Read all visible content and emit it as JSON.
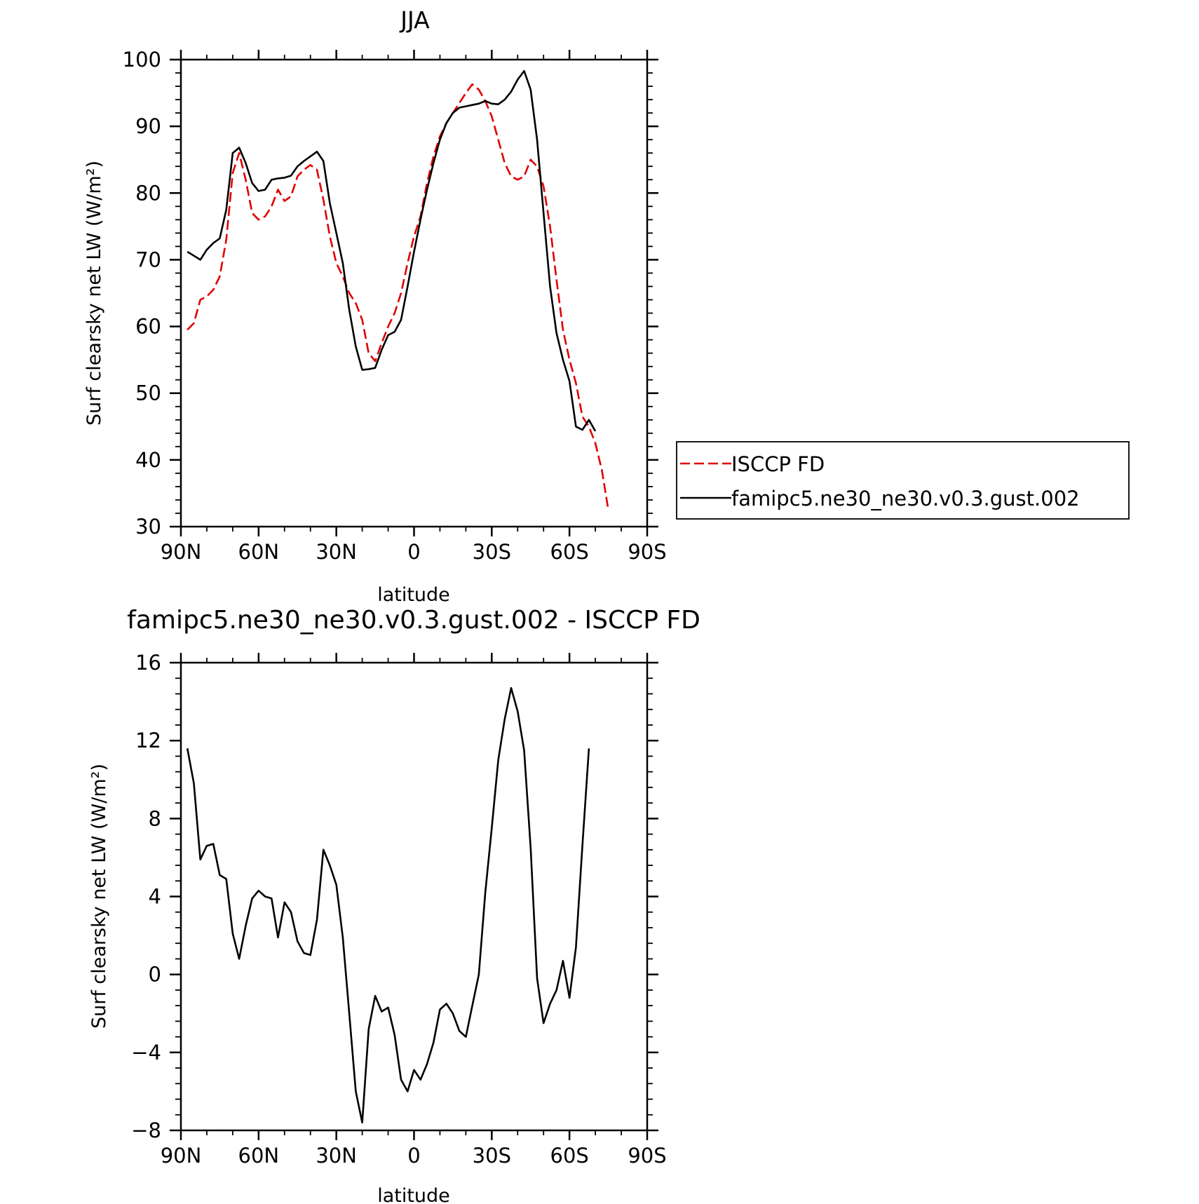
{
  "chart_data": [
    {
      "type": "line",
      "title": "JJA",
      "xlabel": "latitude",
      "ylabel": "Surf clearsky net LW (W/m²)",
      "xlim": [
        90,
        -90
      ],
      "ylim": [
        30,
        100
      ],
      "x_ticks": [
        90,
        60,
        30,
        0,
        -30,
        -60,
        -90
      ],
      "x_tick_labels": [
        "90N",
        "60N",
        "30N",
        "0",
        "30S",
        "60S",
        "90S"
      ],
      "y_ticks": [
        30,
        40,
        50,
        60,
        70,
        80,
        90,
        100
      ],
      "y_tick_labels": [
        "30",
        "40",
        "50",
        "60",
        "70",
        "80",
        "90",
        "100"
      ],
      "legend": {
        "placement": "right",
        "entries": [
          "ISCCP FD",
          "famipc5.ne30_ne30.v0.3.gust.002"
        ]
      },
      "series": [
        {
          "name": "ISCCP FD",
          "color": "#e00000",
          "dash": "dashed",
          "points": [
            [
              87.5,
              59.5
            ],
            [
              85,
              60.5
            ],
            [
              82.5,
              64
            ],
            [
              80,
              64.5
            ],
            [
              77.5,
              65.5
            ],
            [
              75,
              67.5
            ],
            [
              72.5,
              73
            ],
            [
              70,
              83
            ],
            [
              67.5,
              86
            ],
            [
              65,
              82
            ],
            [
              62.5,
              77
            ],
            [
              60,
              76
            ],
            [
              57.5,
              76.5
            ],
            [
              55,
              78
            ],
            [
              52.5,
              80.5
            ],
            [
              50,
              78.8
            ],
            [
              47.5,
              79.5
            ],
            [
              45,
              82.5
            ],
            [
              42.5,
              83.5
            ],
            [
              40,
              84.2
            ],
            [
              37.5,
              83.5
            ],
            [
              35,
              79
            ],
            [
              32.5,
              73.5
            ],
            [
              30,
              69.5
            ],
            [
              27.5,
              67.5
            ],
            [
              25,
              65
            ],
            [
              22.5,
              63.5
            ],
            [
              20,
              61
            ],
            [
              17.5,
              56
            ],
            [
              15,
              54.8
            ],
            [
              12.5,
              57.5
            ],
            [
              10,
              60
            ],
            [
              7.5,
              62
            ],
            [
              5,
              65
            ],
            [
              2.5,
              69.5
            ],
            [
              0,
              73.5
            ],
            [
              -2.5,
              76.5
            ],
            [
              -5,
              81.5
            ],
            [
              -7.5,
              85.5
            ],
            [
              -10,
              88.5
            ],
            [
              -12.5,
              90.5
            ],
            [
              -15,
              92
            ],
            [
              -17.5,
              93.5
            ],
            [
              -20,
              95
            ],
            [
              -22.5,
              96.3
            ],
            [
              -25,
              95.5
            ],
            [
              -27.5,
              93.8
            ],
            [
              -30,
              91.5
            ],
            [
              -32.5,
              88
            ],
            [
              -35,
              84.5
            ],
            [
              -37.5,
              82.5
            ],
            [
              -40,
              82
            ],
            [
              -42.5,
              82.5
            ],
            [
              -45,
              85
            ],
            [
              -47.5,
              84
            ],
            [
              -50,
              81
            ],
            [
              -52.5,
              75
            ],
            [
              -55,
              67
            ],
            [
              -57.5,
              59.5
            ],
            [
              -60,
              55
            ],
            [
              -62.5,
              51.5
            ],
            [
              -65,
              46.5
            ],
            [
              -67.5,
              45
            ],
            [
              -70,
              42.5
            ],
            [
              -72.5,
              38.5
            ],
            [
              -75,
              32.5
            ]
          ]
        },
        {
          "name": "famipc5.ne30_ne30.v0.3.gust.002",
          "color": "#000000",
          "dash": "solid",
          "points": [
            [
              87.5,
              71.2
            ],
            [
              85,
              70.6
            ],
            [
              82.5,
              70
            ],
            [
              80,
              71.5
            ],
            [
              77.5,
              72.5
            ],
            [
              75,
              73.2
            ],
            [
              72.5,
              77.5
            ],
            [
              70,
              86
            ],
            [
              67.5,
              86.8
            ],
            [
              65,
              84.5
            ],
            [
              62.5,
              81.5
            ],
            [
              60,
              80.3
            ],
            [
              57.5,
              80.5
            ],
            [
              55,
              82
            ],
            [
              52.5,
              82.2
            ],
            [
              50,
              82.3
            ],
            [
              47.5,
              82.6
            ],
            [
              45,
              84
            ],
            [
              42.5,
              84.8
            ],
            [
              40,
              85.5
            ],
            [
              37.5,
              86.2
            ],
            [
              35,
              84.8
            ],
            [
              32.5,
              78.5
            ],
            [
              30,
              74
            ],
            [
              27.5,
              69.5
            ],
            [
              25,
              62.5
            ],
            [
              22.5,
              57
            ],
            [
              20,
              53.5
            ],
            [
              17.5,
              53.6
            ],
            [
              15,
              53.8
            ],
            [
              12.5,
              56.5
            ],
            [
              10,
              58.7
            ],
            [
              7.5,
              59.2
            ],
            [
              5,
              61
            ],
            [
              2.5,
              66
            ],
            [
              0,
              71.2
            ],
            [
              -2.5,
              76
            ],
            [
              -5,
              80.5
            ],
            [
              -7.5,
              84.5
            ],
            [
              -10,
              88
            ],
            [
              -12.5,
              90.5
            ],
            [
              -15,
              92
            ],
            [
              -17.5,
              92.8
            ],
            [
              -20,
              93
            ],
            [
              -22.5,
              93.2
            ],
            [
              -25,
              93.4
            ],
            [
              -27.5,
              93.8
            ],
            [
              -30,
              93.4
            ],
            [
              -32.5,
              93.3
            ],
            [
              -35,
              94
            ],
            [
              -37.5,
              95.2
            ],
            [
              -40,
              97
            ],
            [
              -42.5,
              98.3
            ],
            [
              -45,
              95.5
            ],
            [
              -47.5,
              88
            ],
            [
              -50,
              77
            ],
            [
              -52.5,
              66
            ],
            [
              -55,
              59
            ],
            [
              -57.5,
              55
            ],
            [
              -60,
              51.8
            ],
            [
              -62.5,
              45
            ],
            [
              -65,
              44.5
            ],
            [
              -67.5,
              46
            ],
            [
              -70,
              44.3
            ]
          ]
        }
      ]
    },
    {
      "type": "line",
      "title": "famipc5.ne30_ne30.v0.3.gust.002 - ISCCP FD",
      "xlabel": "latitude",
      "ylabel": "Surf clearsky net LW (W/m²)",
      "xlim": [
        90,
        -90
      ],
      "ylim": [
        -8,
        16
      ],
      "x_ticks": [
        90,
        60,
        30,
        0,
        -30,
        -60,
        -90
      ],
      "x_tick_labels": [
        "90N",
        "60N",
        "30N",
        "0",
        "30S",
        "60S",
        "90S"
      ],
      "y_ticks": [
        -8,
        -4,
        0,
        4,
        8,
        12,
        16
      ],
      "y_tick_labels": [
        "−8",
        "−4",
        "0",
        "4",
        "8",
        "12",
        "16"
      ],
      "series": [
        {
          "color": "#000000",
          "dash": "solid",
          "points": [
            [
              87.5,
              11.6
            ],
            [
              85,
              9.8
            ],
            [
              82.5,
              5.9
            ],
            [
              80,
              6.6
            ],
            [
              77.5,
              6.7
            ],
            [
              75,
              5.1
            ],
            [
              72.5,
              4.9
            ],
            [
              70,
              2.1
            ],
            [
              67.5,
              0.8
            ],
            [
              65,
              2.5
            ],
            [
              62.5,
              3.9
            ],
            [
              60,
              4.3
            ],
            [
              57.5,
              4
            ],
            [
              55,
              3.9
            ],
            [
              52.5,
              1.9
            ],
            [
              50,
              3.7
            ],
            [
              47.5,
              3.2
            ],
            [
              45,
              1.7
            ],
            [
              42.5,
              1.1
            ],
            [
              40,
              1
            ],
            [
              37.5,
              2.8
            ],
            [
              35,
              6.4
            ],
            [
              32.5,
              5.6
            ],
            [
              30,
              4.6
            ],
            [
              27.5,
              1.9
            ],
            [
              25,
              -2
            ],
            [
              22.5,
              -6
            ],
            [
              20,
              -7.6
            ],
            [
              17.5,
              -2.8
            ],
            [
              15,
              -1.1
            ],
            [
              12.5,
              -1.9
            ],
            [
              10,
              -1.7
            ],
            [
              7.5,
              -3.1
            ],
            [
              5,
              -5.4
            ],
            [
              2.5,
              -6
            ],
            [
              0,
              -4.9
            ],
            [
              -2.5,
              -5.4
            ],
            [
              -5,
              -4.6
            ],
            [
              -7.5,
              -3.5
            ],
            [
              -10,
              -1.8
            ],
            [
              -12.5,
              -1.5
            ],
            [
              -15,
              -2
            ],
            [
              -17.5,
              -2.9
            ],
            [
              -20,
              -3.2
            ],
            [
              -22.5,
              -1.6
            ],
            [
              -25,
              0
            ],
            [
              -27.5,
              4.2
            ],
            [
              -30,
              7.5
            ],
            [
              -32.5,
              11
            ],
            [
              -35,
              13.1
            ],
            [
              -37.5,
              14.7
            ],
            [
              -40,
              13.5
            ],
            [
              -42.5,
              11.5
            ],
            [
              -45,
              6.5
            ],
            [
              -47.5,
              -0.2
            ],
            [
              -50,
              -2.5
            ],
            [
              -52.5,
              -1.5
            ],
            [
              -55,
              -0.8
            ],
            [
              -57.5,
              0.7
            ],
            [
              -60,
              -1.2
            ],
            [
              -62.5,
              1.4
            ],
            [
              -65,
              6.6
            ],
            [
              -67.5,
              11.6
            ]
          ]
        }
      ]
    }
  ]
}
